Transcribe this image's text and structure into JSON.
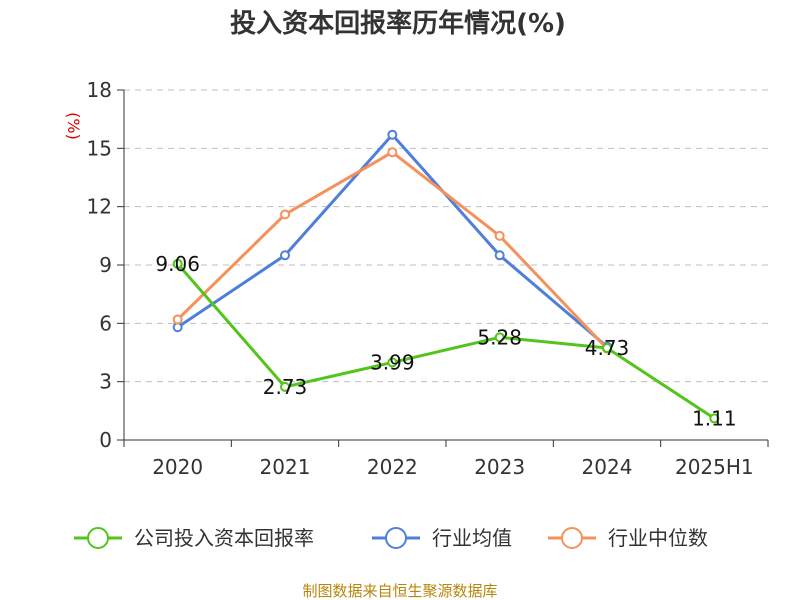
{
  "chart_data": {
    "type": "line",
    "title": "投入资本回报率历年情况(%)",
    "ylabel": "(%)",
    "xlabel": "",
    "categories": [
      "2020",
      "2021",
      "2022",
      "2023",
      "2024",
      "2025H1"
    ],
    "ylim": [
      0,
      18
    ],
    "yticks": [
      0,
      3,
      6,
      9,
      12,
      15,
      18
    ],
    "grid": true,
    "legend_position": "bottom",
    "series": [
      {
        "name": "公司投入资本回报率",
        "color": "#52c41a",
        "values": [
          9.06,
          2.73,
          3.99,
          5.28,
          4.73,
          1.11
        ],
        "labels": [
          "9.06",
          "2.73",
          "3.99",
          "5.28",
          "4.73",
          "1.11"
        ]
      },
      {
        "name": "行业均值",
        "color": "#4f7fdb",
        "values": [
          5.8,
          9.5,
          15.7,
          9.5,
          4.8,
          null
        ]
      },
      {
        "name": "行业中位数",
        "color": "#f5915a",
        "values": [
          6.2,
          11.6,
          14.8,
          10.5,
          4.7,
          null
        ]
      }
    ]
  },
  "source_text": "制图数据来自恒生聚源数据库"
}
